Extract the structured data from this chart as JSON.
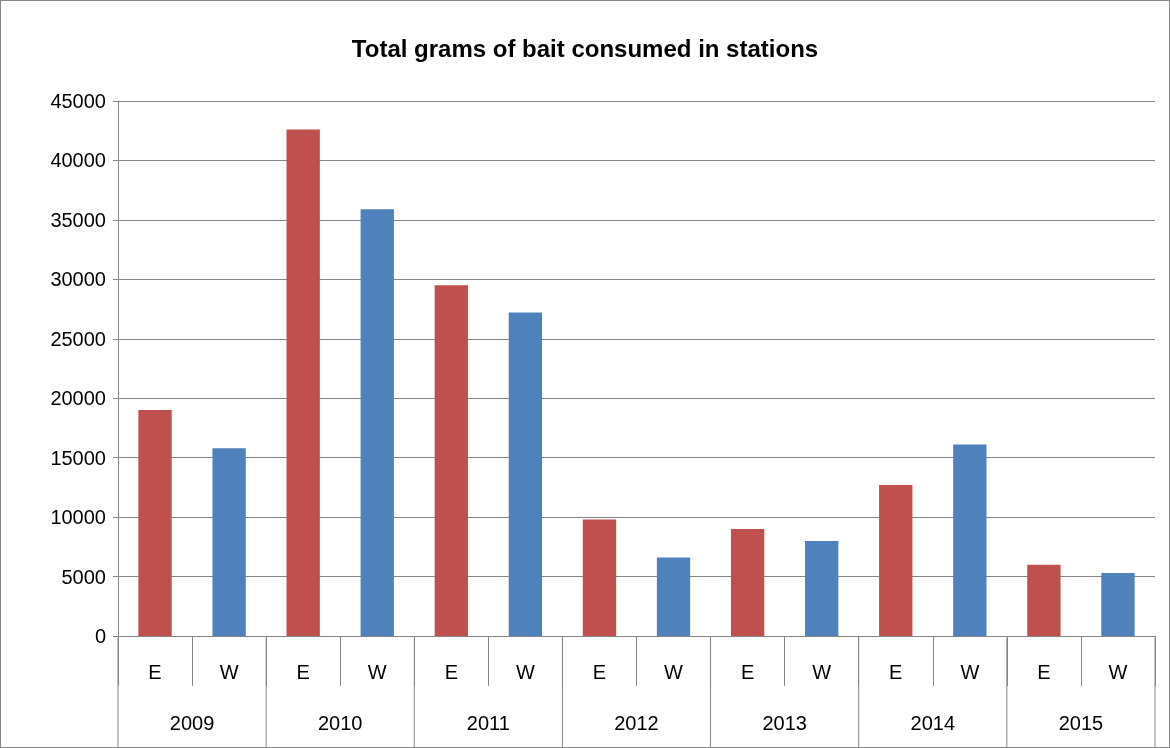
{
  "chart_data": {
    "type": "bar",
    "title": "Total grams of bait consumed in stations",
    "categories": [
      "E",
      "W",
      "E",
      "W",
      "E",
      "W",
      "E",
      "W",
      "E",
      "W",
      "E",
      "W",
      "E",
      "W"
    ],
    "values": [
      19000,
      15800,
      42600,
      35900,
      29500,
      27200,
      9800,
      6600,
      9000,
      8000,
      12700,
      16100,
      6000,
      5300
    ],
    "colors": [
      "#c0504d",
      "#4f81bd",
      "#c0504d",
      "#4f81bd",
      "#c0504d",
      "#4f81bd",
      "#c0504d",
      "#4f81bd",
      "#c0504d",
      "#4f81bd",
      "#c0504d",
      "#4f81bd",
      "#c0504d",
      "#4f81bd"
    ],
    "annotations": [
      "2009",
      "2010",
      "2011",
      "2012",
      "2013",
      "2014",
      "2015"
    ],
    "ylim": [
      0,
      45000
    ],
    "yticks": [
      0,
      5000,
      10000,
      15000,
      20000,
      25000,
      30000,
      35000,
      40000,
      45000
    ],
    "grid": "y"
  }
}
